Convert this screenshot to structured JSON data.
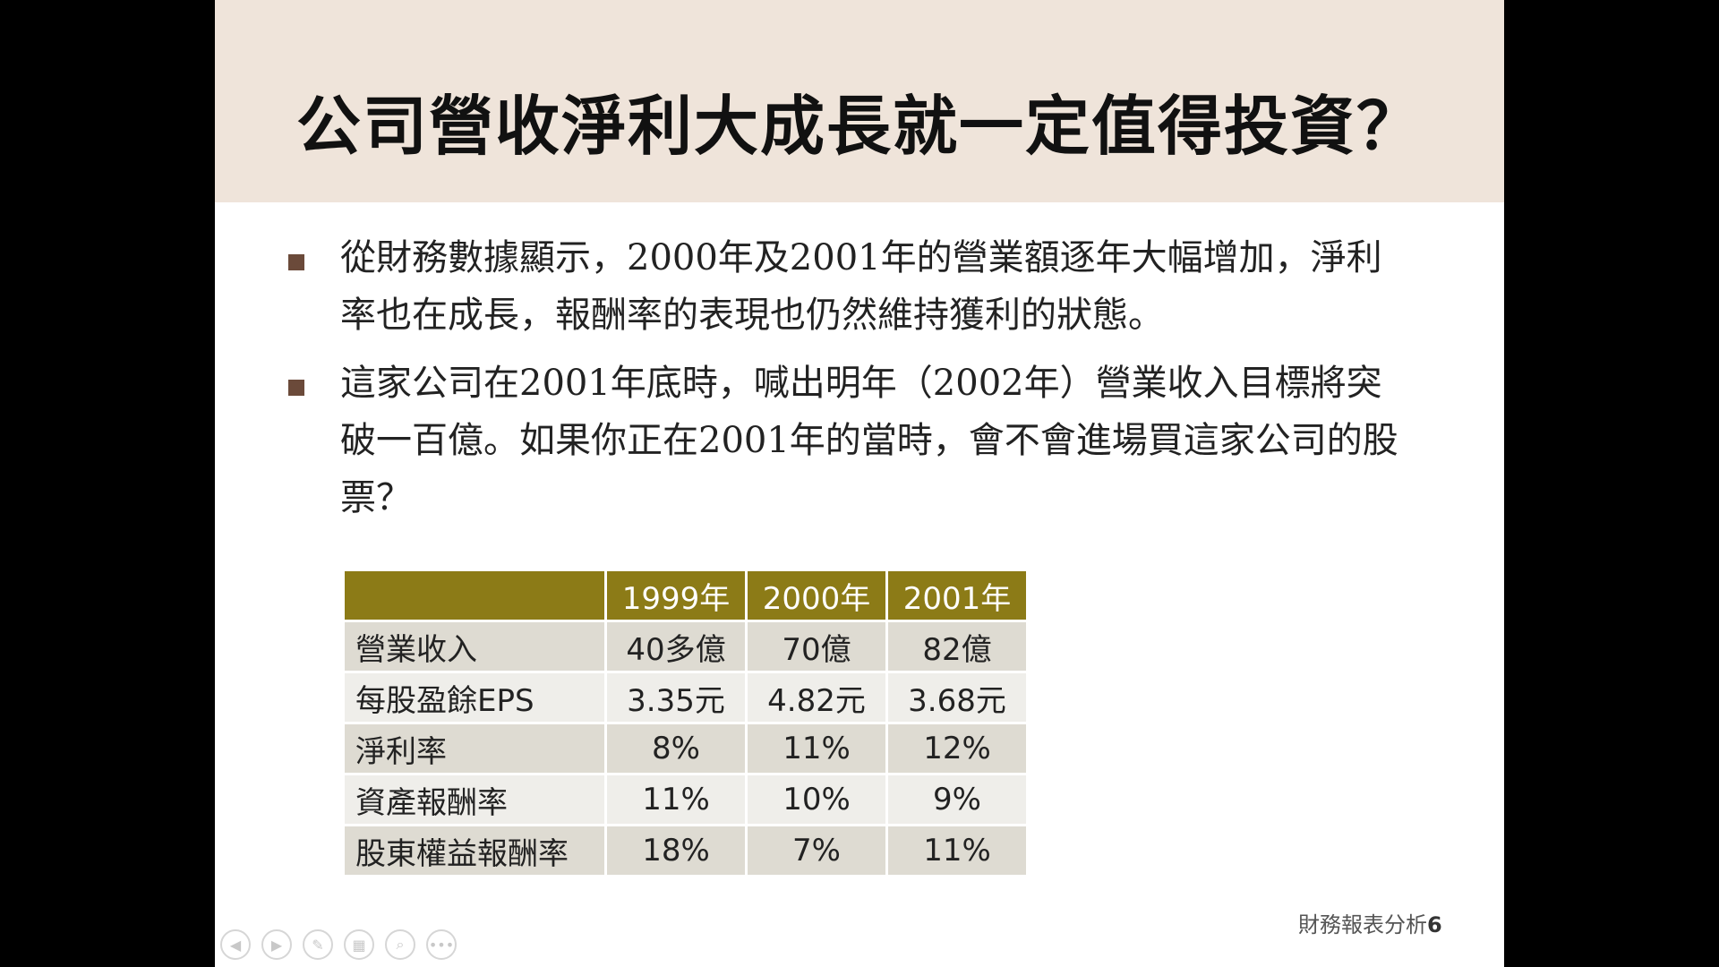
{
  "slide": {
    "title": "公司營收淨利大成長就一定值得投資？",
    "bullets": [
      "從財務數據顯示，2000年及2001年的營業額逐年大幅增加，淨利率也在成長，報酬率的表現也仍然維持獲利的狀態。",
      "這家公司在2001年底時，喊出明年（2002年）營業收入目標將突破一百億。如果你正在2001年的當時，會不會進場買這家公司的股票？"
    ],
    "table": {
      "headers": [
        "",
        "1999年",
        "2000年",
        "2001年"
      ],
      "rows": [
        [
          "營業收入",
          "40多億",
          "70億",
          "82億"
        ],
        [
          "每股盈餘EPS",
          "3.35元",
          "4.82元",
          "3.68元"
        ],
        [
          "淨利率",
          "8%",
          "11%",
          "12%"
        ],
        [
          "資產報酬率",
          "11%",
          "10%",
          "9%"
        ],
        [
          "股東權益報酬率",
          "18%",
          "7%",
          "11%"
        ]
      ]
    },
    "footer": {
      "text": "財務報表分析",
      "page_number": "6"
    }
  },
  "controls": {
    "icons": [
      "previous-icon",
      "next-icon",
      "pen-icon",
      "slides-grid-icon",
      "zoom-icon",
      "more-icon"
    ],
    "glyphs": [
      "◀",
      "▶",
      "✎",
      "▦",
      "⌕",
      "•••"
    ]
  },
  "colors": {
    "title_band": "#efe4da",
    "table_header": "#8c7b17",
    "row_odd": "#dedbd2",
    "row_even": "#efeeea",
    "bullet_mark": "#6b4a3a"
  }
}
